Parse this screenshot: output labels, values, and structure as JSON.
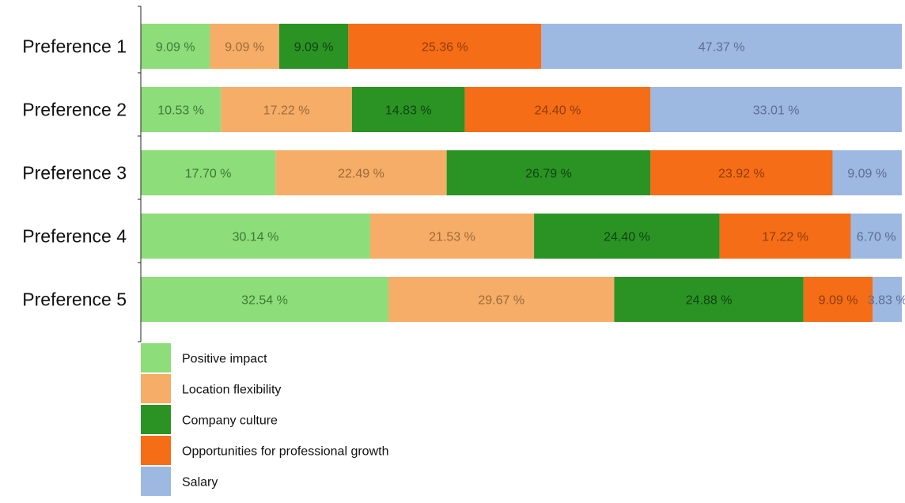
{
  "chart_data": {
    "type": "bar",
    "orientation": "horizontal",
    "stacked": true,
    "title": "",
    "xlabel": "",
    "ylabel": "",
    "xlim": [
      0,
      100
    ],
    "grid": false,
    "legend_position": "bottom-left",
    "value_suffix": " %",
    "categories": [
      "Preference 1",
      "Preference 2",
      "Preference 3",
      "Preference 4",
      "Preference 5"
    ],
    "series": [
      {
        "name": "Positive impact",
        "color": "#8ddd7a",
        "label_color": "#3d7a35",
        "values": [
          9.09,
          10.53,
          17.7,
          30.14,
          32.54
        ]
      },
      {
        "name": "Location flexibility",
        "color": "#f5ad67",
        "label_color": "#9c6a3a",
        "values": [
          9.09,
          17.22,
          22.49,
          21.53,
          29.67
        ]
      },
      {
        "name": "Company culture",
        "color": "#2a9324",
        "label_color": "#104410",
        "values": [
          9.09,
          14.83,
          26.79,
          24.4,
          24.88
        ]
      },
      {
        "name": "Opportunities for professional growth",
        "color": "#f56d16",
        "label_color": "#8f3d0a",
        "values": [
          25.36,
          24.4,
          23.92,
          17.22,
          9.09
        ]
      },
      {
        "name": "Salary",
        "color": "#9db8e1",
        "label_color": "#5b6f93",
        "values": [
          47.37,
          33.01,
          9.09,
          6.7,
          3.83
        ]
      }
    ]
  }
}
